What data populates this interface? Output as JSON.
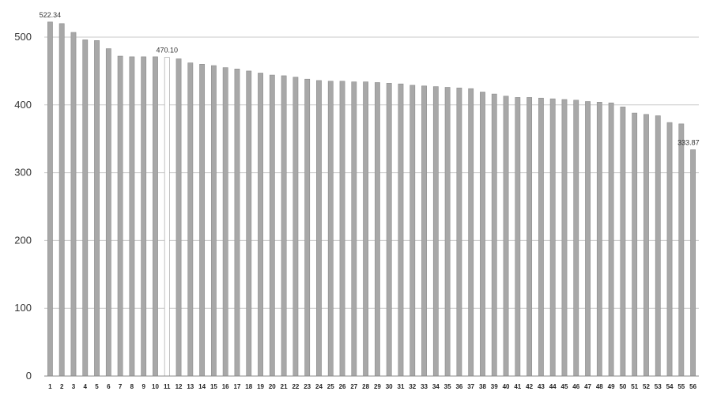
{
  "colors": {
    "bar_fill": "#a8a8a8",
    "bar_stroke": "#8c8c8c",
    "highlight_fill": "#ffffff",
    "highlight_stroke": "#9a9a9a",
    "grid": "#c8c8c8",
    "axis": "#888888"
  },
  "chart_data": {
    "type": "bar",
    "title": "",
    "xlabel": "",
    "ylabel": "",
    "ylim": [
      0,
      500
    ],
    "yticks": [
      0,
      100,
      200,
      300,
      400,
      500
    ],
    "grid": true,
    "categories": [
      "1",
      "2",
      "3",
      "4",
      "5",
      "6",
      "7",
      "8",
      "9",
      "10",
      "11",
      "12",
      "13",
      "14",
      "15",
      "16",
      "17",
      "18",
      "19",
      "20",
      "21",
      "22",
      "23",
      "24",
      "25",
      "26",
      "27",
      "28",
      "29",
      "30",
      "31",
      "32",
      "33",
      "34",
      "35",
      "36",
      "37",
      "38",
      "39",
      "40",
      "41",
      "42",
      "43",
      "44",
      "45",
      "46",
      "47",
      "48",
      "49",
      "50",
      "51",
      "52",
      "53",
      "54",
      "55",
      "56"
    ],
    "values": [
      522.34,
      520,
      507,
      496,
      495,
      483,
      472,
      471,
      471,
      471,
      470.1,
      468,
      462,
      460,
      458,
      455,
      453,
      450,
      447,
      444,
      443,
      441,
      438,
      436,
      435,
      435,
      434,
      434,
      433,
      432,
      431,
      429,
      428,
      427,
      426,
      425,
      424,
      419,
      416,
      413,
      411,
      411,
      410,
      409,
      408,
      407,
      405,
      404,
      403,
      397,
      388,
      386,
      384,
      374,
      372,
      333.87
    ],
    "highlighted_index": 10,
    "data_labels": [
      {
        "index": 0,
        "text": "522.34"
      },
      {
        "index": 10,
        "text": "470.10"
      },
      {
        "index": 55,
        "text": "333.87"
      }
    ]
  }
}
